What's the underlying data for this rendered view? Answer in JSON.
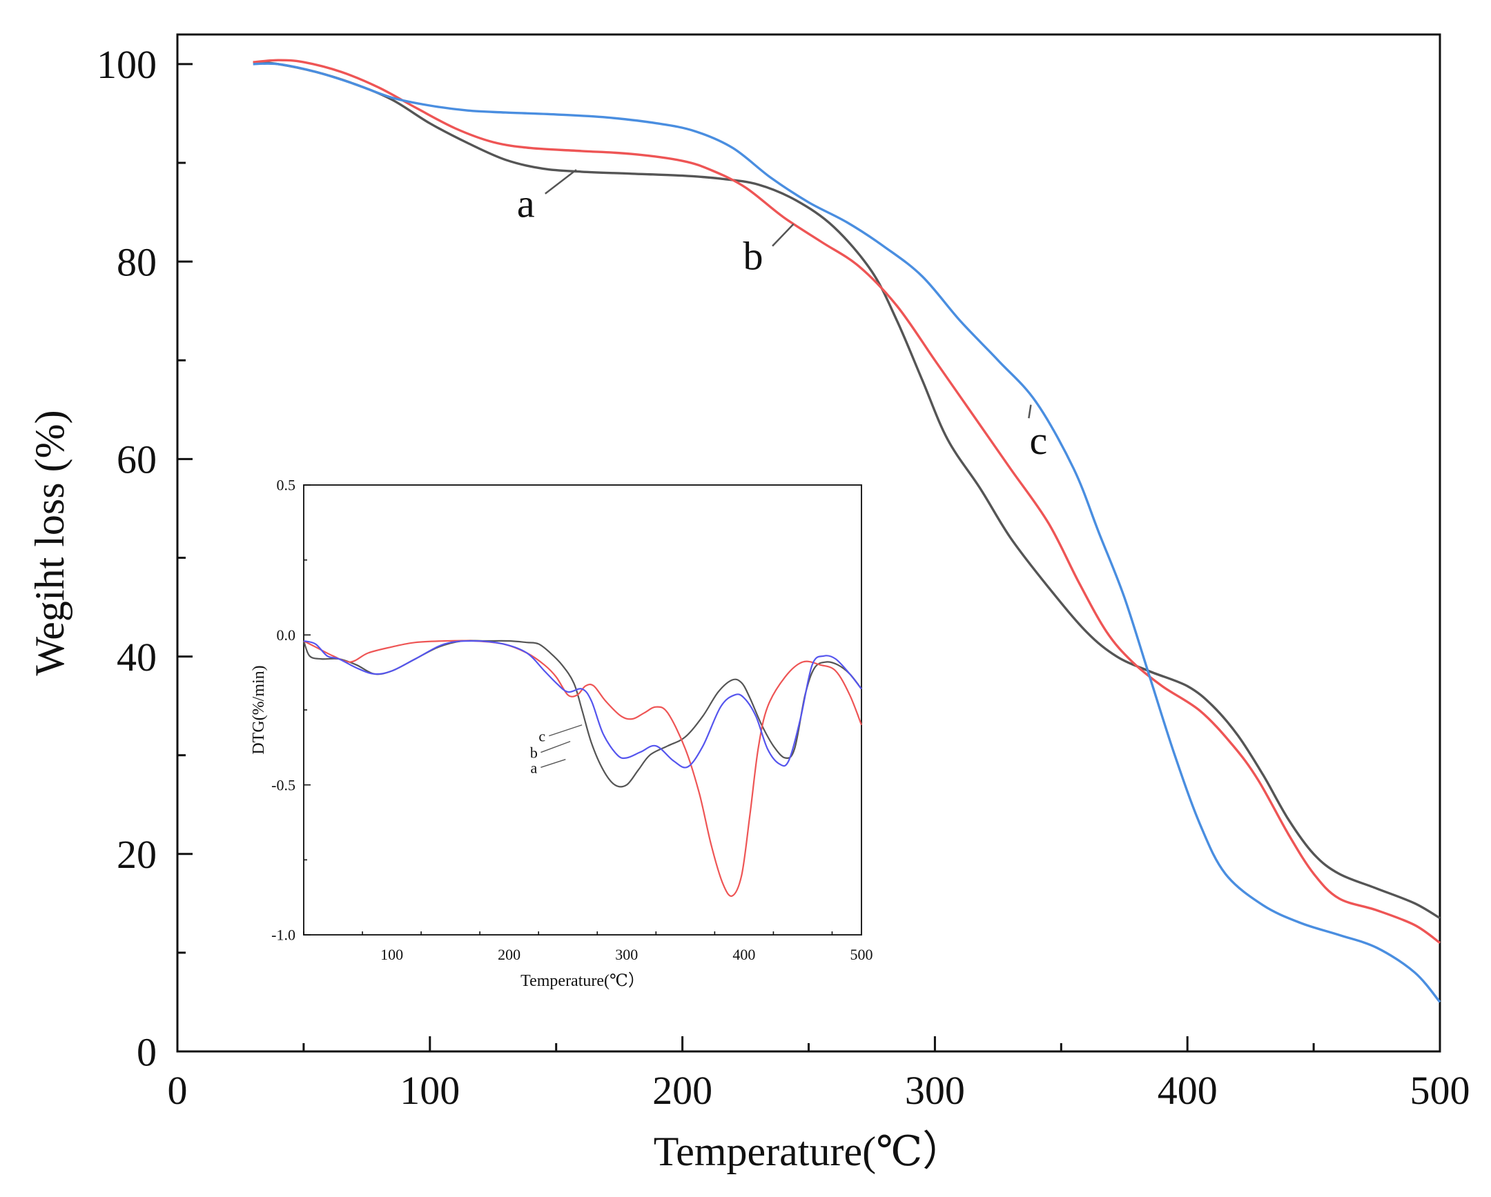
{
  "chart_data": [
    {
      "type": "line",
      "id": "main",
      "title": "",
      "xlabel": "Temperature(℃）",
      "ylabel": "Wegiht loss (%)",
      "xlim": [
        0,
        500
      ],
      "ylim": [
        0,
        103
      ],
      "xticks": [
        0,
        100,
        200,
        300,
        400,
        500
      ],
      "yticks": [
        0,
        20,
        40,
        60,
        80,
        100
      ],
      "grid": false,
      "series": [
        {
          "name": "a",
          "color": "#555555",
          "points": [
            [
              30,
              100.2
            ],
            [
              40,
              100
            ],
            [
              55,
              99.2
            ],
            [
              70,
              98
            ],
            [
              85,
              96.4
            ],
            [
              100,
              94
            ],
            [
              115,
              92
            ],
            [
              130,
              90.3
            ],
            [
              145,
              89.4
            ],
            [
              160,
              89.1
            ],
            [
              180,
              88.9
            ],
            [
              200,
              88.7
            ],
            [
              215,
              88.4
            ],
            [
              230,
              87.8
            ],
            [
              245,
              86.2
            ],
            [
              260,
              83.5
            ],
            [
              275,
              79
            ],
            [
              285,
              74
            ],
            [
              295,
              68
            ],
            [
              305,
              62
            ],
            [
              318,
              57
            ],
            [
              330,
              52
            ],
            [
              345,
              47
            ],
            [
              360,
              42.5
            ],
            [
              372,
              40
            ],
            [
              385,
              38.5
            ],
            [
              400,
              37
            ],
            [
              410,
              35
            ],
            [
              420,
              32
            ],
            [
              430,
              28
            ],
            [
              440,
              23.5
            ],
            [
              450,
              20
            ],
            [
              460,
              18
            ],
            [
              475,
              16.5
            ],
            [
              490,
              15
            ],
            [
              500,
              13.5
            ]
          ],
          "label": "a",
          "label_value": [
            138,
            84.5
          ],
          "leader_to": [
            158,
            89.3
          ]
        },
        {
          "name": "b",
          "color": "#ee5555",
          "points": [
            [
              30,
              100.2
            ],
            [
              40,
              100.4
            ],
            [
              50,
              100.2
            ],
            [
              65,
              99.2
            ],
            [
              80,
              97.6
            ],
            [
              95,
              95.5
            ],
            [
              110,
              93.5
            ],
            [
              125,
              92.1
            ],
            [
              140,
              91.5
            ],
            [
              160,
              91.2
            ],
            [
              180,
              90.9
            ],
            [
              200,
              90.2
            ],
            [
              212,
              89.2
            ],
            [
              225,
              87.5
            ],
            [
              240,
              84.5
            ],
            [
              255,
              82
            ],
            [
              270,
              79.5
            ],
            [
              285,
              75.5
            ],
            [
              300,
              70
            ],
            [
              315,
              64.5
            ],
            [
              330,
              59
            ],
            [
              345,
              53.5
            ],
            [
              357,
              47.5
            ],
            [
              368,
              42.5
            ],
            [
              378,
              39.5
            ],
            [
              390,
              37
            ],
            [
              405,
              34.5
            ],
            [
              418,
              31
            ],
            [
              428,
              27.5
            ],
            [
              440,
              22
            ],
            [
              450,
              18
            ],
            [
              460,
              15.5
            ],
            [
              475,
              14.3
            ],
            [
              490,
              12.8
            ],
            [
              500,
              11
            ]
          ],
          "label": "b",
          "label_value": [
            228,
            79.2
          ],
          "leader_to": [
            244,
            83.8
          ]
        },
        {
          "name": "c",
          "color": "#4a8ee0",
          "points": [
            [
              30,
              100
            ],
            [
              40,
              100
            ],
            [
              55,
              99.2
            ],
            [
              70,
              98
            ],
            [
              85,
              96.6
            ],
            [
              100,
              95.8
            ],
            [
              115,
              95.3
            ],
            [
              130,
              95.1
            ],
            [
              150,
              94.9
            ],
            [
              170,
              94.6
            ],
            [
              190,
              94
            ],
            [
              205,
              93.2
            ],
            [
              220,
              91.5
            ],
            [
              235,
              88.5
            ],
            [
              250,
              86
            ],
            [
              265,
              84
            ],
            [
              280,
              81.5
            ],
            [
              295,
              78.5
            ],
            [
              310,
              74
            ],
            [
              325,
              70
            ],
            [
              340,
              65.8
            ],
            [
              355,
              59
            ],
            [
              365,
              52.5
            ],
            [
              375,
              46
            ],
            [
              385,
              38
            ],
            [
              395,
              30
            ],
            [
              405,
              23
            ],
            [
              415,
              18
            ],
            [
              430,
              14.8
            ],
            [
              445,
              13
            ],
            [
              460,
              11.8
            ],
            [
              475,
              10.5
            ],
            [
              490,
              8
            ],
            [
              500,
              5
            ]
          ],
          "label": "c",
          "label_value": [
            341,
            60.5
          ],
          "leader_to": [
            338,
            65.5
          ]
        }
      ]
    },
    {
      "type": "line",
      "id": "inset",
      "title": "",
      "xlabel": "Temperature(℃）",
      "ylabel": "DTG(%/min)",
      "xlim": [
        25,
        500
      ],
      "ylim": [
        -1.0,
        0.5
      ],
      "xticks": [
        100,
        200,
        300,
        400,
        500
      ],
      "yticks": [
        -1.0,
        -0.5,
        0.0,
        0.5
      ],
      "ytick_labels": [
        "-1.0",
        "-0.5",
        "0.0",
        "0.5"
      ],
      "grid": false,
      "series": [
        {
          "name": "a",
          "color": "#555555",
          "points": [
            [
              25,
              -0.02
            ],
            [
              30,
              -0.07
            ],
            [
              40,
              -0.08
            ],
            [
              55,
              -0.08
            ],
            [
              70,
              -0.1
            ],
            [
              85,
              -0.13
            ],
            [
              100,
              -0.12
            ],
            [
              120,
              -0.08
            ],
            [
              140,
              -0.04
            ],
            [
              160,
              -0.02
            ],
            [
              180,
              -0.02
            ],
            [
              200,
              -0.02
            ],
            [
              215,
              -0.025
            ],
            [
              225,
              -0.03
            ],
            [
              235,
              -0.06
            ],
            [
              245,
              -0.1
            ],
            [
              255,
              -0.16
            ],
            [
              262,
              -0.25
            ],
            [
              270,
              -0.36
            ],
            [
              280,
              -0.45
            ],
            [
              290,
              -0.5
            ],
            [
              300,
              -0.5
            ],
            [
              310,
              -0.45
            ],
            [
              320,
              -0.4
            ],
            [
              335,
              -0.37
            ],
            [
              350,
              -0.34
            ],
            [
              365,
              -0.27
            ],
            [
              378,
              -0.19
            ],
            [
              390,
              -0.15
            ],
            [
              398,
              -0.16
            ],
            [
              405,
              -0.21
            ],
            [
              415,
              -0.3
            ],
            [
              425,
              -0.37
            ],
            [
              435,
              -0.41
            ],
            [
              443,
              -0.38
            ],
            [
              452,
              -0.2
            ],
            [
              460,
              -0.11
            ],
            [
              470,
              -0.09
            ],
            [
              480,
              -0.1
            ],
            [
              490,
              -0.13
            ],
            [
              500,
              -0.18
            ]
          ],
          "label": "a"
        },
        {
          "name": "b",
          "color": "#ee5555",
          "points": [
            [
              25,
              -0.02
            ],
            [
              35,
              -0.04
            ],
            [
              50,
              -0.07
            ],
            [
              65,
              -0.09
            ],
            [
              80,
              -0.06
            ],
            [
              100,
              -0.04
            ],
            [
              120,
              -0.025
            ],
            [
              145,
              -0.02
            ],
            [
              170,
              -0.02
            ],
            [
              195,
              -0.03
            ],
            [
              215,
              -0.06
            ],
            [
              230,
              -0.1
            ],
            [
              240,
              -0.14
            ],
            [
              250,
              -0.2
            ],
            [
              258,
              -0.2
            ],
            [
              265,
              -0.17
            ],
            [
              272,
              -0.17
            ],
            [
              282,
              -0.22
            ],
            [
              295,
              -0.27
            ],
            [
              305,
              -0.28
            ],
            [
              315,
              -0.26
            ],
            [
              325,
              -0.24
            ],
            [
              335,
              -0.26
            ],
            [
              350,
              -0.38
            ],
            [
              362,
              -0.53
            ],
            [
              372,
              -0.7
            ],
            [
              382,
              -0.83
            ],
            [
              390,
              -0.87
            ],
            [
              398,
              -0.8
            ],
            [
              405,
              -0.6
            ],
            [
              412,
              -0.38
            ],
            [
              420,
              -0.24
            ],
            [
              435,
              -0.14
            ],
            [
              450,
              -0.09
            ],
            [
              465,
              -0.1
            ],
            [
              478,
              -0.12
            ],
            [
              490,
              -0.2
            ],
            [
              500,
              -0.3
            ]
          ],
          "label": "b"
        },
        {
          "name": "c",
          "color": "#5555ee",
          "points": [
            [
              25,
              -0.02
            ],
            [
              35,
              -0.03
            ],
            [
              45,
              -0.07
            ],
            [
              55,
              -0.08
            ],
            [
              70,
              -0.11
            ],
            [
              85,
              -0.13
            ],
            [
              100,
              -0.12
            ],
            [
              120,
              -0.08
            ],
            [
              145,
              -0.03
            ],
            [
              170,
              -0.02
            ],
            [
              195,
              -0.03
            ],
            [
              215,
              -0.06
            ],
            [
              230,
              -0.12
            ],
            [
              240,
              -0.16
            ],
            [
              250,
              -0.19
            ],
            [
              262,
              -0.18
            ],
            [
              270,
              -0.22
            ],
            [
              280,
              -0.33
            ],
            [
              292,
              -0.4
            ],
            [
              300,
              -0.41
            ],
            [
              312,
              -0.39
            ],
            [
              325,
              -0.37
            ],
            [
              340,
              -0.42
            ],
            [
              352,
              -0.44
            ],
            [
              365,
              -0.37
            ],
            [
              380,
              -0.24
            ],
            [
              392,
              -0.2
            ],
            [
              400,
              -0.21
            ],
            [
              410,
              -0.27
            ],
            [
              420,
              -0.38
            ],
            [
              430,
              -0.43
            ],
            [
              438,
              -0.42
            ],
            [
              448,
              -0.28
            ],
            [
              458,
              -0.1
            ],
            [
              468,
              -0.07
            ],
            [
              478,
              -0.08
            ],
            [
              490,
              -0.13
            ],
            [
              500,
              -0.18
            ]
          ],
          "label": "c"
        }
      ]
    }
  ]
}
